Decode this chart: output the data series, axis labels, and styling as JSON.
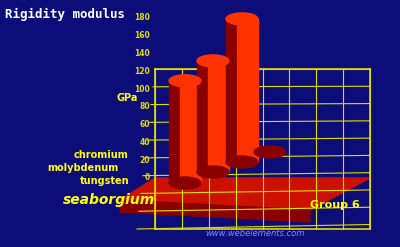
{
  "title": "Rigidity modulus",
  "ylabel": "GPa",
  "group_label": "Group 6",
  "website": "www.webelements.com",
  "elements": [
    "chromium",
    "molybdenum",
    "tungsten",
    "seaborgium"
  ],
  "values": [
    115,
    125,
    161,
    0
  ],
  "bar_color_bright": "#ff3300",
  "bar_color_mid": "#cc1100",
  "bar_color_dark": "#880000",
  "platform_color": "#cc1100",
  "platform_dark": "#880000",
  "grid_color": "#dddd00",
  "bg_color": "#0d0d7a",
  "title_color": "#ffffff",
  "label_color": "#ffff00",
  "website_color": "#8888ff",
  "group_color": "#ffff00",
  "yticks": [
    0,
    20,
    40,
    60,
    80,
    100,
    120,
    140,
    160,
    180
  ],
  "ymax": 180,
  "fig_width": 4.0,
  "fig_height": 2.47,
  "dpi": 100
}
